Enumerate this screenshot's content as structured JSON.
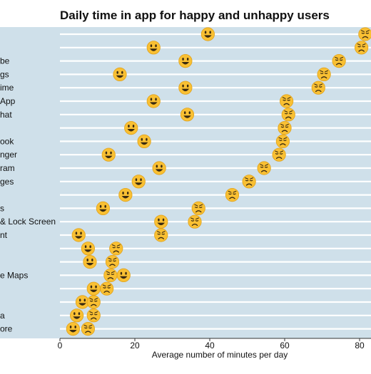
{
  "chart_data": {
    "type": "scatter",
    "title": "Daily time in app for happy and unhappy users",
    "xlabel": "Average number of minutes per day",
    "ylabel": "",
    "xlim": [
      0,
      83
    ],
    "xticks": [
      "0",
      "20",
      "40",
      "60",
      "80"
    ],
    "grid": true,
    "colors": {
      "plot_bg": "#cfe0ea",
      "gridline": "#ffffff",
      "emoji_face": "#f9c033",
      "emoji_edge": "#e0a21d",
      "emoji_feature": "#3a2a10"
    },
    "categories": [
      "",
      "",
      "be",
      "gs",
      "ime",
      "App",
      "hat",
      "",
      "ook",
      "nger",
      "ram",
      "ges",
      "",
      "s",
      "& Lock Screen",
      "nt",
      "",
      "",
      "e Maps",
      "",
      "",
      "a",
      "ore"
    ],
    "series": [
      {
        "marker": "happy-face",
        "values": [
          39.5,
          25,
          33.5,
          16,
          33.5,
          25,
          34,
          19,
          22.5,
          13,
          26.5,
          21,
          17.5,
          11.5,
          27,
          5,
          7.5,
          8,
          17,
          9,
          6,
          4.5,
          3.5
        ]
      },
      {
        "marker": "unhappy-face",
        "values": [
          81.5,
          80.5,
          74.5,
          70.5,
          69,
          60.5,
          61,
          60,
          59.5,
          58.5,
          54.5,
          50.5,
          46,
          37,
          36,
          27,
          15,
          14,
          13.5,
          12.5,
          9,
          9,
          7.5
        ]
      }
    ]
  }
}
